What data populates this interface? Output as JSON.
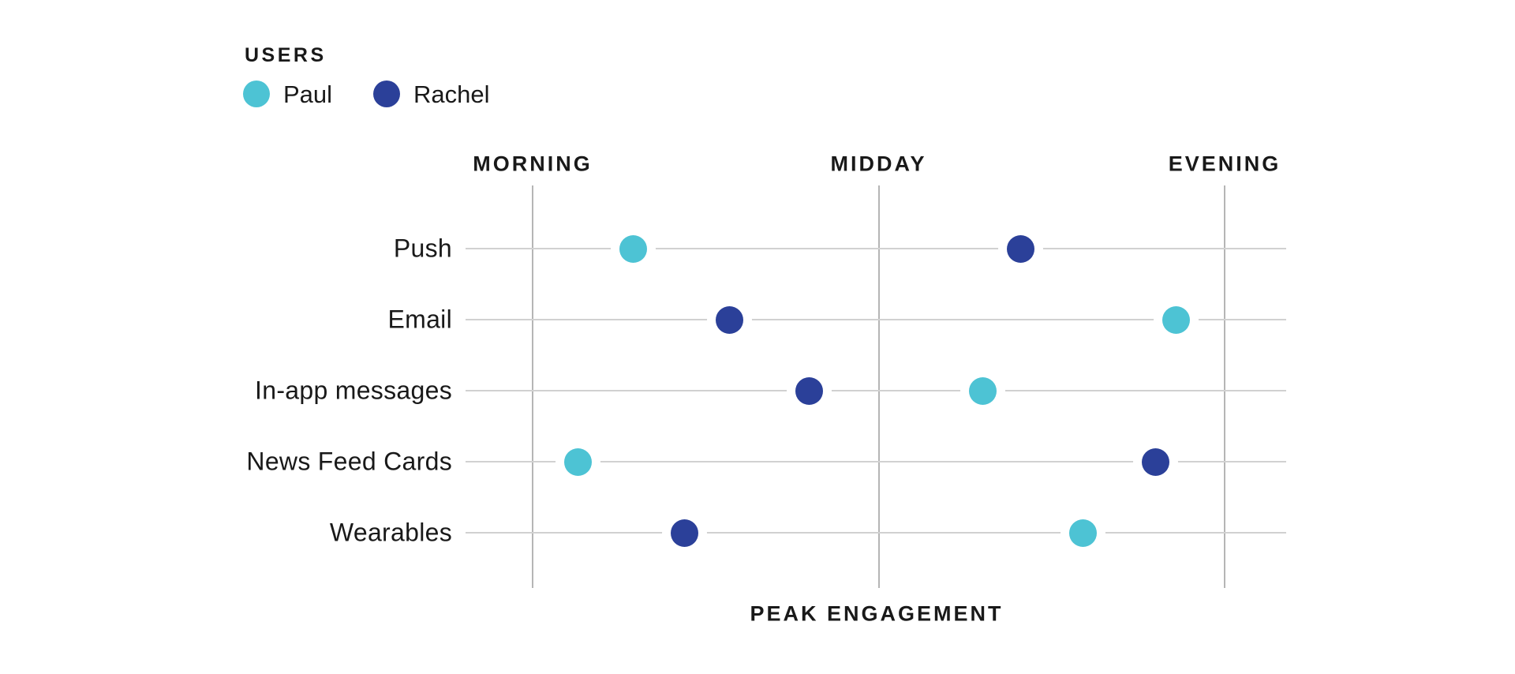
{
  "legend": {
    "title": "USERS",
    "items": [
      {
        "label": "Paul",
        "color": "#4DC3D4"
      },
      {
        "label": "Rachel",
        "color": "#2B4099"
      }
    ]
  },
  "chart_data": {
    "type": "scatter",
    "title": "",
    "xlabel": "PEAK ENGAGEMENT",
    "ylabel": "",
    "x_axis": {
      "position": "top",
      "range": [
        0,
        2
      ],
      "ticks": [
        {
          "label": "MORNING",
          "value": 0
        },
        {
          "label": "MIDDAY",
          "value": 1
        },
        {
          "label": "EVENING",
          "value": 2
        }
      ]
    },
    "categories": [
      "Push",
      "Email",
      "In-app messages",
      "News Feed Cards",
      "Wearables"
    ],
    "series": [
      {
        "name": "Paul",
        "color": "#4DC3D4",
        "x": [
          0.29,
          1.86,
          1.3,
          0.13,
          1.59
        ]
      },
      {
        "name": "Rachel",
        "color": "#2B4099",
        "x": [
          1.41,
          0.57,
          0.8,
          1.8,
          0.44
        ]
      }
    ],
    "grid": true,
    "legend_position": "top-left"
  },
  "colors": {
    "background": "#ffffff",
    "grid_vertical": "#b5b5b5",
    "grid_horizontal": "#d1d1d1",
    "text": "#191919"
  }
}
